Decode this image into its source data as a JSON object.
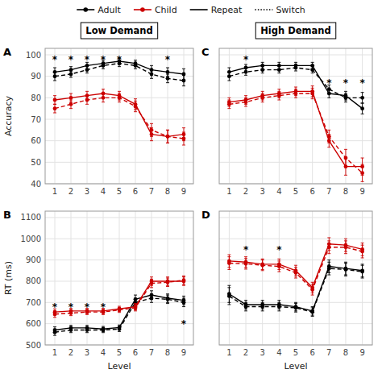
{
  "chart_data": [
    {
      "type": "line",
      "panel_label": "A",
      "title": "Low Demand",
      "ylabel": "Accuracy",
      "x": [
        1,
        2,
        3,
        4,
        5,
        6,
        7,
        8,
        9
      ],
      "xlim": [
        0.4,
        9.6
      ],
      "xticks": [
        1,
        2,
        3,
        4,
        5,
        6,
        7,
        8,
        9
      ],
      "ylim": [
        40,
        103
      ],
      "yticks": [
        40,
        50,
        60,
        70,
        80,
        90,
        100
      ],
      "grid": true,
      "series": [
        {
          "color": "#000000",
          "line_style": "solid",
          "marker": "circle",
          "values": [
            92,
            93,
            95,
            96,
            97,
            96,
            93,
            92,
            91
          ],
          "errors": [
            2,
            1.5,
            1.5,
            1.5,
            1.5,
            1.5,
            2,
            2,
            2.5
          ]
        },
        {
          "color": "#000000",
          "line_style": "dashed",
          "marker": "circle",
          "values": [
            90,
            91,
            93,
            95,
            96,
            95,
            91,
            89,
            88
          ],
          "errors": [
            2,
            1.5,
            1.5,
            1.5,
            1.5,
            1.5,
            2,
            2,
            2.5
          ]
        },
        {
          "color": "#cc0000",
          "line_style": "solid",
          "marker": "circle",
          "values": [
            79,
            80,
            81,
            82,
            81,
            77,
            63,
            62,
            63
          ],
          "errors": [
            2,
            2,
            2,
            2,
            2,
            2.5,
            3,
            3,
            3
          ]
        },
        {
          "color": "#cc0000",
          "line_style": "dashed",
          "marker": "circle",
          "values": [
            75,
            77,
            79,
            80,
            80,
            76,
            65,
            62,
            61
          ],
          "errors": [
            2,
            2,
            2,
            2,
            2,
            2.5,
            3,
            3,
            3
          ]
        }
      ],
      "annotations": [
        {
          "text": "*",
          "x": 1,
          "y": 99
        },
        {
          "text": "*",
          "x": 2,
          "y": 99
        },
        {
          "text": "*",
          "x": 3,
          "y": 99
        },
        {
          "text": "*",
          "x": 4,
          "y": 99
        },
        {
          "text": "*",
          "x": 5,
          "y": 99
        },
        {
          "text": "*",
          "x": 8,
          "y": 99
        }
      ]
    },
    {
      "type": "line",
      "panel_label": "B",
      "xlabel": "Level",
      "ylabel": "RT (ms)",
      "x": [
        1,
        2,
        3,
        4,
        5,
        6,
        7,
        8,
        9
      ],
      "xlim": [
        0.4,
        9.6
      ],
      "xticks": [
        1,
        2,
        3,
        4,
        5,
        6,
        7,
        8,
        9
      ],
      "ylim": [
        500,
        1130
      ],
      "yticks": [
        500,
        600,
        700,
        800,
        900,
        1000,
        1100
      ],
      "grid": true,
      "series": [
        {
          "color": "#000000",
          "line_style": "solid",
          "marker": "circle",
          "values": [
            570,
            580,
            580,
            575,
            582,
            715,
            735,
            720,
            710
          ],
          "errors": [
            15,
            12,
            12,
            12,
            12,
            20,
            20,
            20,
            20
          ]
        },
        {
          "color": "#000000",
          "line_style": "dashed",
          "marker": "circle",
          "values": [
            560,
            570,
            570,
            570,
            575,
            700,
            720,
            715,
            700
          ],
          "errors": [
            15,
            12,
            12,
            12,
            12,
            20,
            20,
            20,
            20
          ]
        },
        {
          "color": "#cc0000",
          "line_style": "solid",
          "marker": "circle",
          "values": [
            655,
            660,
            660,
            660,
            670,
            680,
            800,
            800,
            800
          ],
          "errors": [
            15,
            12,
            12,
            12,
            12,
            15,
            20,
            20,
            20
          ]
        },
        {
          "color": "#cc0000",
          "line_style": "dashed",
          "marker": "circle",
          "values": [
            645,
            650,
            655,
            655,
            665,
            675,
            790,
            795,
            805
          ],
          "errors": [
            15,
            12,
            12,
            12,
            12,
            15,
            20,
            20,
            20
          ]
        }
      ],
      "annotations": [
        {
          "text": "*",
          "x": 1,
          "y": 690
        },
        {
          "text": "*",
          "x": 2,
          "y": 690
        },
        {
          "text": "*",
          "x": 3,
          "y": 690
        },
        {
          "text": "*",
          "x": 4,
          "y": 690
        },
        {
          "text": "*",
          "x": 9,
          "y": 610
        }
      ]
    },
    {
      "type": "line",
      "panel_label": "C",
      "title": "High Demand",
      "tick_labels": "x",
      "x": [
        1,
        2,
        3,
        4,
        5,
        6,
        7,
        8,
        9
      ],
      "xlim": [
        0.4,
        9.6
      ],
      "xticks": [
        1,
        2,
        3,
        4,
        5,
        6,
        7,
        8,
        9
      ],
      "ylim": [
        40,
        103
      ],
      "yticks": [
        40,
        50,
        60,
        70,
        80,
        90,
        100
      ],
      "grid": true,
      "series": [
        {
          "color": "#000000",
          "line_style": "solid",
          "marker": "circle",
          "values": [
            92,
            94,
            95,
            95,
            95,
            95,
            82,
            81,
            75
          ],
          "errors": [
            2,
            1.5,
            1.5,
            1.5,
            1.5,
            1.5,
            2,
            2,
            2.5
          ]
        },
        {
          "color": "#000000",
          "line_style": "dashed",
          "marker": "circle",
          "values": [
            90,
            92,
            93,
            93,
            94,
            93,
            84,
            80,
            80
          ],
          "errors": [
            2,
            1.5,
            1.5,
            1.5,
            1.5,
            1.5,
            2,
            2,
            2.5
          ]
        },
        {
          "color": "#cc0000",
          "line_style": "solid",
          "marker": "circle",
          "values": [
            78,
            79,
            81,
            82,
            83,
            83,
            60,
            48,
            48
          ],
          "errors": [
            2,
            2,
            2,
            2,
            2,
            2.5,
            3,
            4,
            4
          ]
        },
        {
          "color": "#cc0000",
          "line_style": "dashed",
          "marker": "circle",
          "values": [
            77,
            78,
            80,
            81,
            82,
            82,
            62,
            52,
            45
          ],
          "errors": [
            2,
            2,
            2,
            2,
            2,
            2.5,
            3,
            4,
            4
          ]
        }
      ],
      "annotations": [
        {
          "text": "*",
          "x": 2,
          "y": 99
        },
        {
          "text": "*",
          "x": 7,
          "y": 88
        },
        {
          "text": "*",
          "x": 8,
          "y": 88
        },
        {
          "text": "*",
          "x": 9,
          "y": 88
        }
      ]
    },
    {
      "type": "line",
      "panel_label": "D",
      "xlabel": "Level",
      "tick_labels": "x",
      "x": [
        1,
        2,
        3,
        4,
        5,
        6,
        7,
        8,
        9
      ],
      "xlim": [
        0.4,
        9.6
      ],
      "xticks": [
        1,
        2,
        3,
        4,
        5,
        6,
        7,
        8,
        9
      ],
      "ylim": [
        500,
        1130
      ],
      "yticks": [
        500,
        600,
        700,
        800,
        900,
        1000,
        1100
      ],
      "grid": true,
      "series": [
        {
          "color": "#000000",
          "line_style": "solid",
          "marker": "circle",
          "values": [
            740,
            690,
            690,
            690,
            680,
            660,
            870,
            860,
            850
          ],
          "errors": [
            40,
            20,
            20,
            20,
            20,
            20,
            30,
            30,
            30
          ]
        },
        {
          "color": "#000000",
          "line_style": "dashed",
          "marker": "circle",
          "values": [
            730,
            680,
            680,
            680,
            675,
            655,
            860,
            855,
            845
          ],
          "errors": [
            40,
            20,
            20,
            20,
            20,
            20,
            30,
            30,
            30
          ]
        },
        {
          "color": "#cc0000",
          "line_style": "solid",
          "marker": "circle",
          "values": [
            895,
            890,
            880,
            880,
            850,
            770,
            975,
            970,
            950
          ],
          "errors": [
            30,
            25,
            25,
            25,
            25,
            25,
            30,
            30,
            30
          ]
        },
        {
          "color": "#cc0000",
          "line_style": "dashed",
          "marker": "circle",
          "values": [
            885,
            882,
            875,
            870,
            840,
            760,
            960,
            960,
            940
          ],
          "errors": [
            30,
            25,
            25,
            25,
            25,
            25,
            30,
            30,
            30
          ]
        }
      ],
      "annotations": [
        {
          "text": "*",
          "x": 2,
          "y": 960
        },
        {
          "text": "*",
          "x": 4,
          "y": 960
        }
      ]
    }
  ],
  "legend_items": [
    {
      "name": "Adult",
      "color": "#000000",
      "marker": "circle",
      "line_style": "solid"
    },
    {
      "name": "Child",
      "color": "#cc0000",
      "marker": "circle",
      "line_style": "solid"
    },
    {
      "name": "Repeat",
      "color": "#000000",
      "line_style": "solid"
    },
    {
      "name": "Switch",
      "color": "#000000",
      "line_style": "dotted"
    }
  ]
}
